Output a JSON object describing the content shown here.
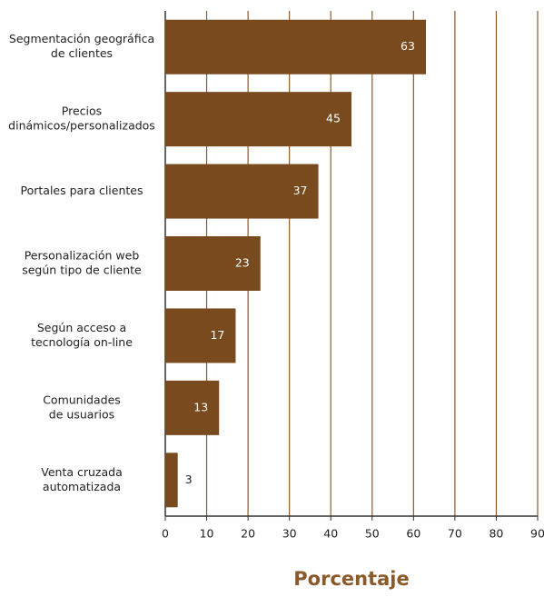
{
  "chart_data": {
    "type": "bar",
    "orientation": "horizontal",
    "x_label": "Porcentaje",
    "categories": [
      [
        "Segmentación geográfica",
        "de clientes"
      ],
      [
        "Precios",
        "dinámicos/personalizados"
      ],
      [
        "Portales para clientes"
      ],
      [
        "Personalización web",
        "según tipo de cliente"
      ],
      [
        "Según acceso a",
        "tecnología on-line"
      ],
      [
        "Comunidades",
        "de usuarios"
      ],
      [
        "Venta cruzada",
        "automatizada"
      ]
    ],
    "values": [
      63,
      45,
      37,
      23,
      17,
      13,
      3
    ],
    "color": "#7a4a1f",
    "xlim": [
      0,
      90
    ],
    "xticks": [
      0,
      10,
      20,
      30,
      40,
      50,
      60,
      70,
      80,
      90
    ],
    "grid": true
  }
}
